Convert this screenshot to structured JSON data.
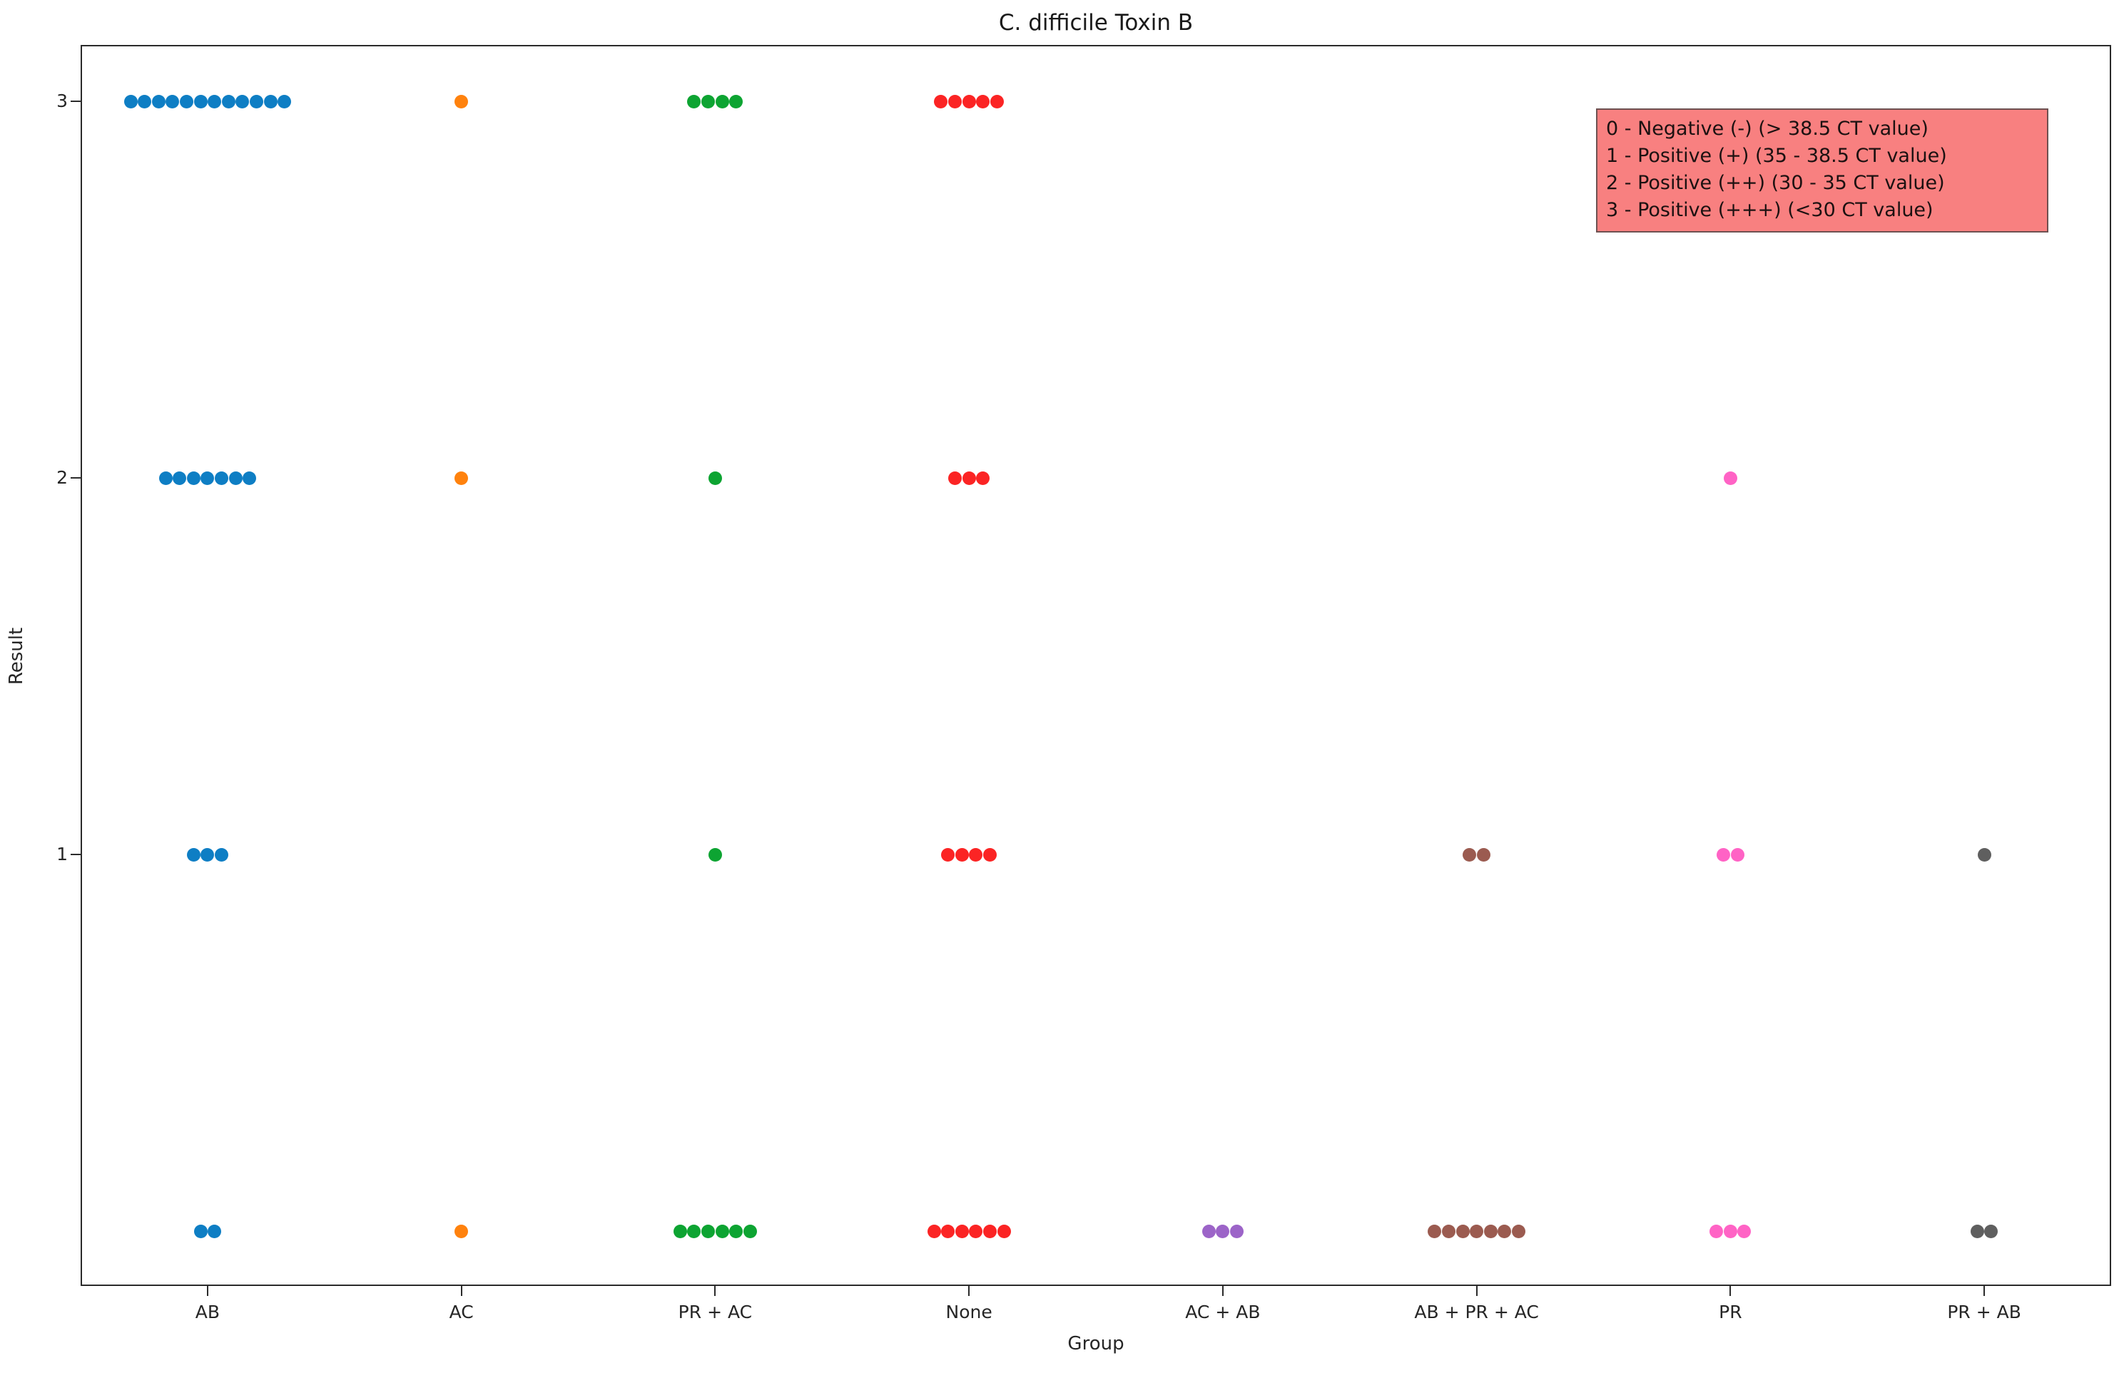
{
  "chart_data": {
    "type": "scatter",
    "title": "C. difficile Toxin B",
    "xlabel": "Group",
    "ylabel": "Result",
    "categories": [
      "AB",
      "AC",
      "PR + AC",
      "None",
      "AC + AB",
      "AB + PR + AC",
      "PR",
      "PR + AB"
    ],
    "yticks": [
      3,
      2,
      1
    ],
    "ylim": [
      -0.15,
      3.15
    ],
    "grid": false,
    "legend_position": "upper right",
    "legend_background": "#f88080",
    "legend_entries": [
      "0 - Negative (-) (> 38.5 CT value)",
      "1 - Positive (+) (35 - 38.5 CT value)",
      "2 - Positive (++) (30 - 35 CT value)",
      "3 - Positive (+++) (<30 CT value)"
    ],
    "series": [
      {
        "group": "AB",
        "color": "#0e7ec4",
        "counts_by_result": {
          "0": 2,
          "1": 3,
          "2": 7,
          "3": 12
        }
      },
      {
        "group": "AC",
        "color": "#ff820d",
        "counts_by_result": {
          "0": 1,
          "1": 0,
          "2": 1,
          "3": 1
        }
      },
      {
        "group": "PR + AC",
        "color": "#0da432",
        "counts_by_result": {
          "0": 6,
          "1": 1,
          "2": 1,
          "3": 4
        }
      },
      {
        "group": "None",
        "color": "#fb2424",
        "counts_by_result": {
          "0": 6,
          "1": 4,
          "2": 3,
          "3": 5
        }
      },
      {
        "group": "AC + AB",
        "color": "#9c64c8",
        "counts_by_result": {
          "0": 3,
          "1": 0,
          "2": 0,
          "3": 0
        }
      },
      {
        "group": "AB + PR + AC",
        "color": "#9b5b50",
        "counts_by_result": {
          "0": 7,
          "1": 2,
          "2": 0,
          "3": 0
        }
      },
      {
        "group": "PR",
        "color": "#ff63c5",
        "counts_by_result": {
          "0": 3,
          "1": 2,
          "2": 1,
          "3": 0
        }
      },
      {
        "group": "PR + AB",
        "color": "#5f5f5f",
        "counts_by_result": {
          "0": 2,
          "1": 1,
          "2": 0,
          "3": 0
        }
      }
    ]
  }
}
